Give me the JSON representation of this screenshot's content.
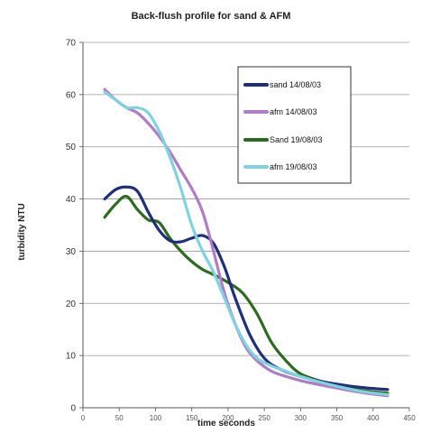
{
  "chart_data": {
    "type": "line",
    "title": "Back-flush profile for sand & AFM",
    "xlabel": "time seconds",
    "ylabel": "turbidity NTU",
    "xlim": [
      0,
      450
    ],
    "ylim": [
      0,
      70
    ],
    "xticks": [
      "0",
      "50",
      "100",
      "150",
      "200",
      "250",
      "300",
      "350",
      "400",
      "450"
    ],
    "yticks": [
      "0",
      "10",
      "20",
      "30",
      "40",
      "50",
      "60",
      "70"
    ],
    "grid": true,
    "legend_position": "upper-right inside plot",
    "series": [
      {
        "name": "sand 14/08/03",
        "color": "#1f2f7a",
        "x": [
          30,
          45,
          60,
          75,
          90,
          105,
          120,
          135,
          150,
          165,
          180,
          195,
          210,
          230,
          250,
          270,
          300,
          330,
          360,
          390,
          420
        ],
        "y": [
          40,
          41.8,
          42.3,
          41.5,
          37.5,
          34,
          32,
          31.8,
          32.5,
          33,
          31.5,
          27,
          21,
          14,
          9.5,
          7.5,
          6,
          5,
          4.3,
          3.8,
          3.5
        ]
      },
      {
        "name": "afm 14/08/03",
        "color": "#b07cc6",
        "x": [
          30,
          45,
          60,
          75,
          90,
          105,
          120,
          135,
          150,
          165,
          180,
          195,
          210,
          225,
          240,
          260,
          280,
          300,
          330,
          360,
          390,
          420
        ],
        "y": [
          61,
          59,
          57.5,
          56.5,
          54.5,
          52,
          49,
          45.5,
          42,
          37.5,
          30,
          22,
          16,
          11.5,
          9,
          7,
          6,
          5.2,
          4.3,
          3.5,
          2.8,
          2.3
        ]
      },
      {
        "name": "Sand 19/08/03",
        "color": "#2d6b1e",
        "x": [
          30,
          45,
          60,
          75,
          90,
          105,
          120,
          135,
          150,
          165,
          180,
          200,
          220,
          240,
          260,
          280,
          300,
          330,
          360,
          390,
          420
        ],
        "y": [
          36.5,
          39,
          40.5,
          38,
          36,
          35.5,
          32.5,
          30,
          28,
          26.5,
          25.5,
          24,
          22,
          18,
          12.5,
          9,
          6.5,
          5,
          4,
          3.2,
          2.8
        ]
      },
      {
        "name": "afm 19/08/03",
        "color": "#7fd3e0",
        "x": [
          30,
          45,
          60,
          75,
          90,
          105,
          120,
          135,
          150,
          165,
          180,
          195,
          210,
          225,
          240,
          260,
          280,
          300,
          330,
          360,
          390,
          420
        ],
        "y": [
          60.5,
          59,
          57.5,
          57.5,
          56.5,
          53,
          48,
          42,
          35,
          30,
          26,
          21,
          16,
          12,
          9.5,
          8,
          7,
          6,
          4.8,
          3.8,
          3,
          2.5
        ]
      }
    ]
  }
}
